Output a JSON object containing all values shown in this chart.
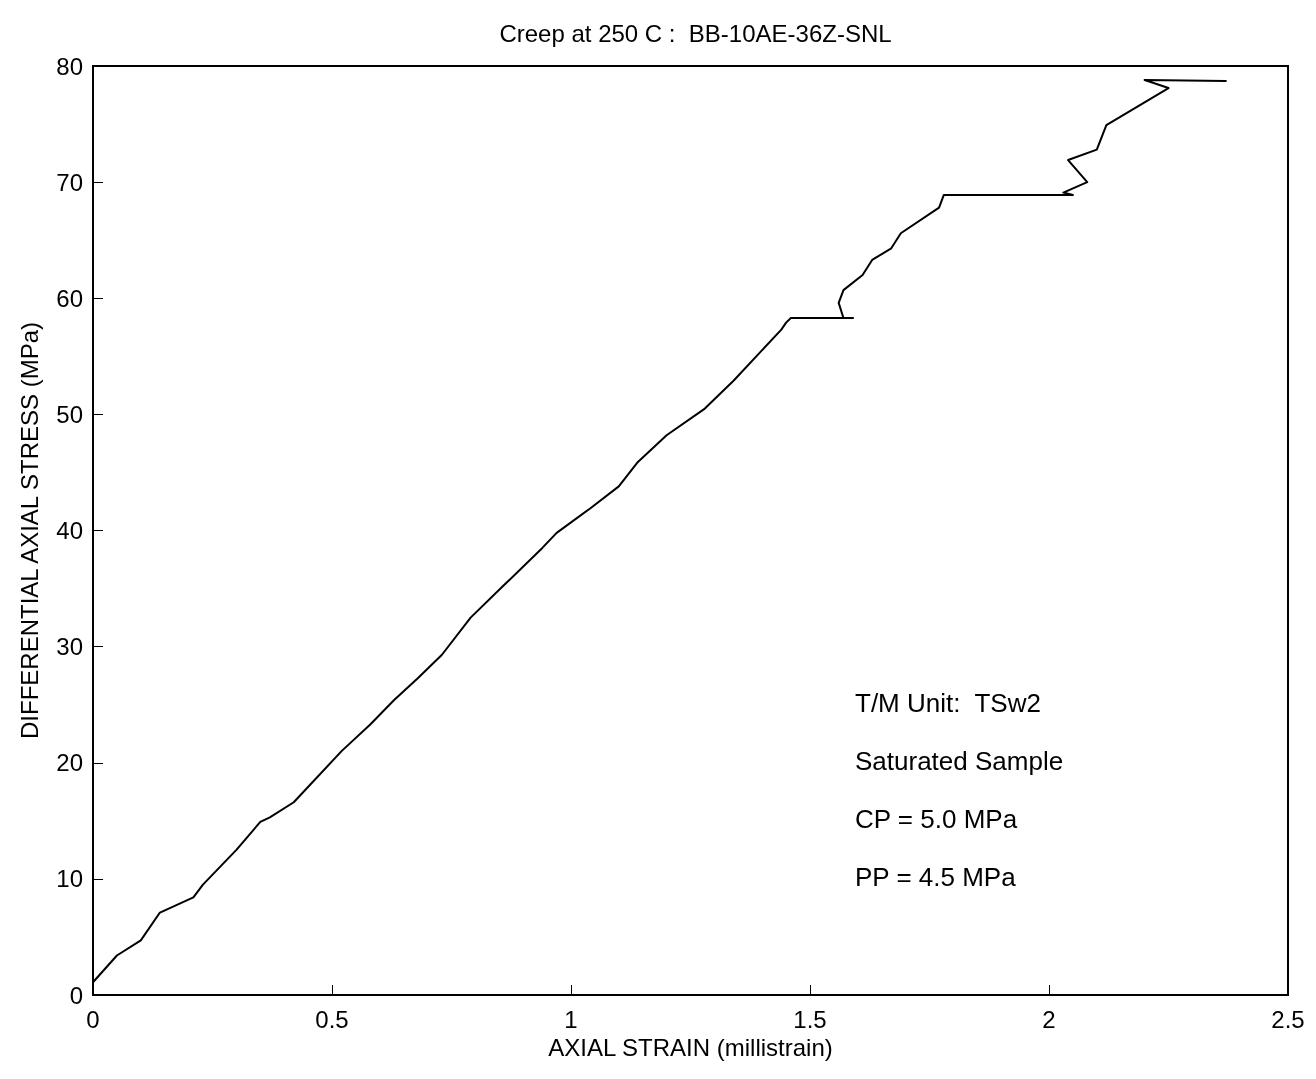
{
  "chart_data": {
    "type": "line",
    "title": "Creep at 250 C :  BB-10AE-36Z-SNL",
    "xlabel": "AXIAL STRAIN (millistrain)",
    "ylabel": "DIFFERENTIAL AXIAL STRESS (MPa)",
    "annotations": [
      "T/M Unit:  TSw2",
      "Saturated Sample",
      "CP = 5.0 MPa",
      "PP = 4.5 MPa"
    ],
    "series": [
      {
        "color": "#000000",
        "x": [
          0,
          0.05,
          0.1,
          0.14,
          0.21,
          0.23,
          0.3,
          0.35,
          0.37,
          0.42,
          0.52,
          0.58,
          0.63,
          0.68,
          0.73,
          0.79,
          0.86,
          0.94,
          0.97,
          1.04,
          1.1,
          1.14,
          1.2,
          1.28,
          1.34,
          1.44,
          1.45,
          1.46,
          1.59,
          1.57,
          1.56,
          1.57,
          1.61,
          1.63,
          1.67,
          1.69,
          1.77,
          1.78,
          2.05,
          2.03,
          2.08,
          2.04,
          2.1,
          2.12,
          2.25,
          2.2,
          2.37
        ],
        "values": [
          1.1,
          3.4,
          4.7,
          7.1,
          8.4,
          9.5,
          12.5,
          14.9,
          15.3,
          16.6,
          21.0,
          23.3,
          25.4,
          27.3,
          29.3,
          32.5,
          35.3,
          38.5,
          39.8,
          41.9,
          43.8,
          45.9,
          48.2,
          50.5,
          52.9,
          57.3,
          57.9,
          58.3,
          58.3,
          58.3,
          59.6,
          60.7,
          62.0,
          63.3,
          64.3,
          65.6,
          67.8,
          68.9,
          68.9,
          69.1,
          70.0,
          71.9,
          72.8,
          74.9,
          78.1,
          78.8,
          78.7
        ]
      }
    ],
    "xlim": [
      0,
      2.5
    ],
    "xticks": [
      0,
      0.5,
      1,
      1.5,
      2,
      2.5
    ],
    "ylim": [
      0,
      80
    ],
    "yticks": [
      0,
      10,
      20,
      30,
      40,
      50,
      60,
      70,
      80
    ],
    "grid": false,
    "marker": "none",
    "line_style": "solid"
  }
}
